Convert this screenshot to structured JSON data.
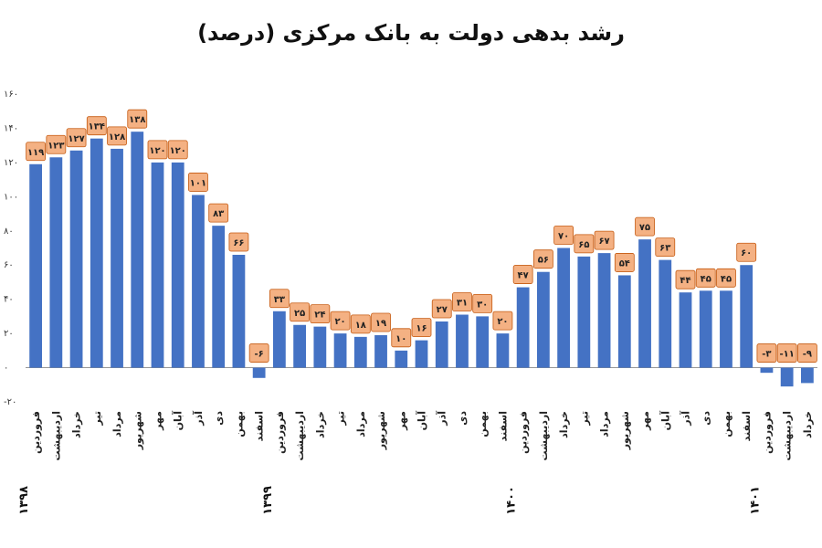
{
  "chart_data": {
    "type": "bar",
    "title": "رشد بدهی دولت به بانک مرکزی (درصد)",
    "ylim": [
      -20,
      160
    ],
    "yticks": [
      -20,
      0,
      20,
      40,
      60,
      80,
      100,
      120,
      140,
      160
    ],
    "ytick_labels": [
      "-۲۰",
      "۰",
      "۲۰",
      "۴۰",
      "۶۰",
      "۸۰",
      "۱۰۰",
      "۱۲۰",
      "۱۴۰",
      "۱۶۰"
    ],
    "grid": false,
    "categories": [
      "فروردین",
      "اردیبهشت",
      "خرداد",
      "تیر",
      "مرداد",
      "شهریور",
      "مهر",
      "آبان",
      "آذر",
      "دی",
      "بهمن",
      "اسفند",
      "فروردین",
      "اردیبهشت",
      "خرداد",
      "تیر",
      "مرداد",
      "شهریور",
      "مهر",
      "آبان",
      "آذر",
      "دی",
      "بهمن",
      "اسفند",
      "فروردین",
      "اردیبهشت",
      "خرداد",
      "تیر",
      "مرداد",
      "شهریور",
      "مهر",
      "آبان",
      "آذر",
      "دی",
      "بهمن",
      "اسفند",
      "فروردین",
      "اردیبهشت",
      "خرداد"
    ],
    "year_labels": [
      {
        "label": "۱۳۹۸",
        "category_index": 0
      },
      {
        "label": "۱۳۹۹",
        "category_index": 12
      },
      {
        "label": "۱۴۰۰",
        "category_index": 24
      },
      {
        "label": "۱۴۰۱",
        "category_index": 36
      }
    ],
    "values": [
      119,
      123,
      127,
      134,
      128,
      138,
      120,
      120,
      101,
      83,
      66,
      -6,
      33,
      25,
      24,
      20,
      18,
      19,
      10,
      16,
      27,
      31,
      30,
      20,
      47,
      56,
      70,
      65,
      67,
      54,
      75,
      63,
      44,
      45,
      45,
      60,
      -3,
      -11,
      -9
    ],
    "data_labels": [
      "۱۱۹",
      "۱۲۳",
      "۱۲۷",
      "۱۳۴",
      "۱۲۸",
      "۱۳۸",
      "۱۲۰",
      "۱۲۰",
      "۱۰۱",
      "۸۳",
      "۶۶",
      "-۶",
      "۳۳",
      "۲۵",
      "۲۴",
      "۲۰",
      "۱۸",
      "۱۹",
      "۱۰",
      "۱۶",
      "۲۷",
      "۳۱",
      "۳۰",
      "۲۰",
      "۴۷",
      "۵۶",
      "۷۰",
      "۶۵",
      "۶۷",
      "۵۴",
      "۷۵",
      "۶۳",
      "۴۴",
      "۴۵",
      "۴۵",
      "۶۰",
      "-۳",
      "-۱۱",
      "-۹"
    ],
    "colors": {
      "bar": "#4472C4",
      "label_fill": "#F4B183",
      "label_stroke": "#C55A11",
      "axis": "#888888"
    }
  }
}
